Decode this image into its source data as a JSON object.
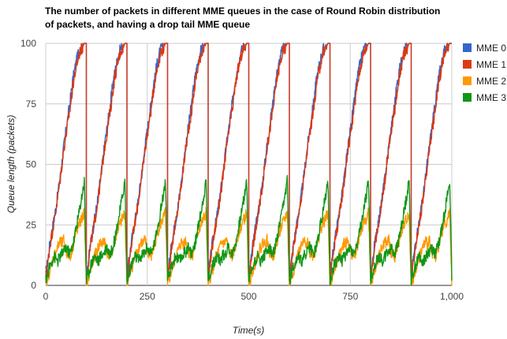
{
  "chart_data": {
    "type": "line",
    "title_lines": [
      "The number of packets in different MME queues in the case of Round Robin distribution",
      "of packets, and having a drop tail MME queue"
    ],
    "xlabel": "Time(s)",
    "ylabel": "Queue length (packets)",
    "xlim": [
      0,
      1000
    ],
    "ylim": [
      0,
      100
    ],
    "xticks": [
      0,
      250,
      500,
      750,
      1000
    ],
    "xtick_labels": [
      "0",
      "250",
      "500",
      "750",
      "1,000"
    ],
    "yticks": [
      0,
      25,
      50,
      75,
      100
    ],
    "ytick_labels": [
      "0",
      "25",
      "50",
      "75",
      "100"
    ],
    "grid": true,
    "legend_position": "right",
    "period": 100,
    "x": [
      0,
      5,
      10,
      15,
      20,
      25,
      30,
      35,
      40,
      45,
      50,
      55,
      60,
      65,
      70,
      75,
      80,
      85,
      90,
      95,
      100
    ],
    "series": [
      {
        "name": "MME 0",
        "color": "#3366cc",
        "values": [
          5,
          10,
          17,
          22,
          27,
          32,
          38,
          44,
          51,
          58,
          64,
          70,
          76,
          83,
          88,
          92,
          96,
          98,
          99,
          100,
          100
        ]
      },
      {
        "name": "MME 1",
        "color": "#dc3912",
        "values": [
          4,
          9,
          16,
          21,
          26,
          31,
          37,
          43,
          50,
          57,
          62,
          68,
          73,
          80,
          86,
          90,
          94,
          97,
          98,
          100,
          100
        ]
      },
      {
        "name": "MME 2",
        "color": "#ff9900",
        "values": [
          0,
          3,
          6,
          9,
          12,
          14,
          16,
          18,
          17,
          19,
          14,
          13,
          12,
          15,
          18,
          22,
          24,
          26,
          28,
          30,
          0
        ]
      },
      {
        "name": "MME 3",
        "color": "#109618",
        "values": [
          2,
          5,
          8,
          10,
          12,
          11,
          10,
          12,
          13,
          14,
          16,
          14,
          13,
          16,
          19,
          24,
          28,
          33,
          38,
          43,
          2
        ]
      }
    ]
  }
}
